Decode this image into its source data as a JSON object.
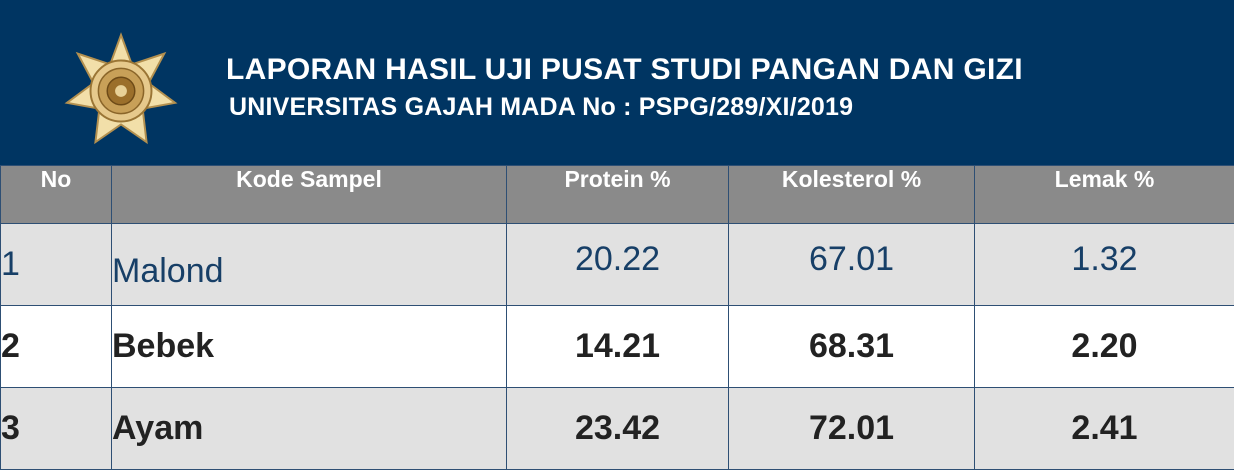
{
  "header": {
    "title": "LAPORAN HASIL UJI PUSAT STUDI PANGAN DAN GIZI",
    "subtitle": "UNIVERSITAS GAJAH MADA No : PSPG/289/XI/2019",
    "logo_icon": "ugm-emblem-icon"
  },
  "table": {
    "columns": [
      "No",
      "Kode Sampel",
      "Protein %",
      "Kolesterol %",
      "Lemak %"
    ],
    "rows": [
      {
        "no": "1",
        "kode_sampel": "Malond",
        "protein": "20.22",
        "kolesterol": "67.01",
        "lemak": "1.32"
      },
      {
        "no": "2",
        "kode_sampel": "Bebek",
        "protein": "14.21",
        "kolesterol": "68.31",
        "lemak": "2.20"
      },
      {
        "no": "3",
        "kode_sampel": "Ayam",
        "protein": "23.42",
        "kolesterol": "72.01",
        "lemak": "2.41"
      }
    ]
  },
  "colors": {
    "header_background": "#003562",
    "table_header_background": "#8a8a8a",
    "row_alt_background": "#e1e1e1",
    "first_row_text": "#173f67"
  }
}
